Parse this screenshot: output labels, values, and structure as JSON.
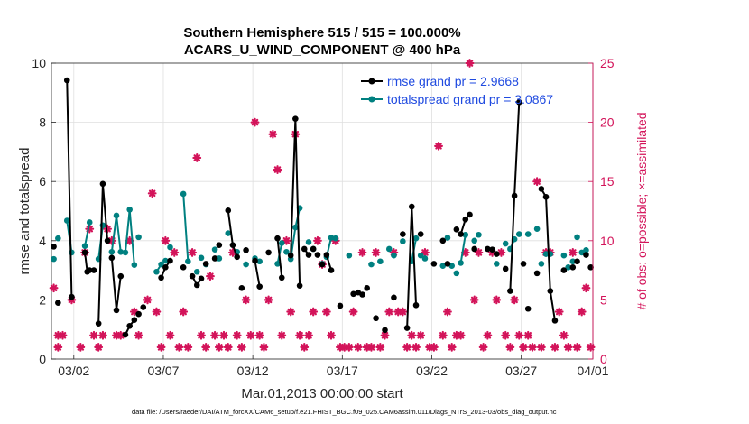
{
  "chart_data": {
    "type": "line",
    "title_line1": "Southern Hemisphere 515 / 515 = 100.000%",
    "title_line2": "ACARS_U_WIND_COMPONENT @ 400 hPa",
    "xlabel": "Mar.01,2013 00:00:00 start",
    "ylabel_left": "rmse and totalspread",
    "ylabel_right": "# of obs: o=possible; ×=assimilated",
    "xlim": [
      0.75,
      31.0
    ],
    "ylim_left": [
      0,
      10
    ],
    "ylim_right": [
      0,
      25
    ],
    "x_ticks": [
      {
        "value": 2,
        "label": "03/02"
      },
      {
        "value": 7,
        "label": "03/07"
      },
      {
        "value": 12,
        "label": "03/12"
      },
      {
        "value": 17,
        "label": "03/17"
      },
      {
        "value": 22,
        "label": "03/22"
      },
      {
        "value": 27,
        "label": "03/27"
      },
      {
        "value": 32,
        "label": "04/01"
      }
    ],
    "y_ticks_left": [
      "0",
      "2",
      "4",
      "6",
      "8",
      "10"
    ],
    "y_ticks_right": [
      "0",
      "5",
      "10",
      "15",
      "20",
      "25"
    ],
    "legend": [
      {
        "name": "rmse grand pr = 2.9668",
        "color": "#000000"
      },
      {
        "name": "totalspread grand pr = 3.0867",
        "color": "#008080"
      }
    ],
    "colors": {
      "rmse": "#000000",
      "totalspread": "#008080",
      "obs": "#d3145a",
      "legend_text": "#1f4ae0"
    },
    "footnote": "data file: /Users/raeder/DAI/ATM_forcXX/CAM6_setup/f.e21.FHIST_BGC.f09_025.CAM6assim.011/Diags_NTrS_2013-03/obs_diag_output.nc",
    "rmse_segments": [
      [
        [
          0.88,
          3.8
        ]
      ],
      [
        [
          1.12,
          1.9
        ]
      ],
      [
        [
          1.62,
          9.42
        ],
        [
          1.88,
          2.1
        ]
      ],
      [
        [
          2.62,
          3.6
        ],
        [
          2.75,
          2.95
        ],
        [
          2.88,
          3.0
        ],
        [
          3.12,
          3.0
        ]
      ],
      [
        [
          3.38,
          1.2
        ],
        [
          3.62,
          5.92
        ],
        [
          3.88,
          4.0
        ]
      ],
      [
        [
          4.12,
          3.42
        ],
        [
          4.38,
          1.65
        ],
        [
          4.62,
          2.8
        ]
      ],
      [
        [
          4.88,
          0.82
        ],
        [
          5.12,
          1.12
        ],
        [
          5.38,
          1.32
        ]
      ],
      [
        [
          5.62,
          1.52
        ]
      ],
      [
        [
          5.88,
          1.75
        ]
      ],
      [
        [
          6.88,
          2.75
        ],
        [
          7.12,
          3.1
        ],
        [
          7.38,
          3.32
        ]
      ],
      [
        [
          8.12,
          3.1
        ]
      ],
      [
        [
          8.62,
          2.8
        ],
        [
          8.88,
          2.5
        ],
        [
          9.12,
          2.72
        ]
      ],
      [
        [
          9.38,
          3.22
        ]
      ],
      [
        [
          9.88,
          3.4
        ]
      ],
      [
        [
          10.12,
          3.85
        ]
      ],
      [
        [
          10.62,
          5.02
        ],
        [
          10.88,
          3.85
        ],
        [
          11.12,
          3.45
        ]
      ],
      [
        [
          11.38,
          2.4
        ]
      ],
      [
        [
          11.62,
          3.68
        ]
      ],
      [
        [
          12.12,
          3.32
        ],
        [
          12.38,
          2.45
        ]
      ],
      [
        [
          12.88,
          3.6
        ]
      ],
      [
        [
          13.38,
          4.08
        ],
        [
          13.62,
          2.75
        ]
      ],
      [
        [
          14.12,
          3.5
        ],
        [
          14.38,
          8.12
        ],
        [
          14.62,
          2.48
        ]
      ],
      [
        [
          14.88,
          3.72
        ],
        [
          15.12,
          3.52
        ]
      ],
      [
        [
          15.38,
          3.72
        ]
      ],
      [
        [
          15.62,
          3.52
        ]
      ],
      [
        [
          15.88,
          3.2
        ]
      ],
      [
        [
          16.12,
          3.52
        ],
        [
          16.38,
          3.0
        ]
      ],
      [
        [
          16.88,
          1.8
        ]
      ],
      [
        [
          17.62,
          2.2
        ]
      ],
      [
        [
          17.88,
          2.25
        ]
      ],
      [
        [
          18.12,
          2.18
        ]
      ],
      [
        [
          18.38,
          2.4
        ]
      ],
      [
        [
          18.88,
          1.38
        ]
      ],
      [
        [
          19.38,
          0.98
        ]
      ],
      [
        [
          19.88,
          2.08
        ]
      ],
      [
        [
          20.38,
          4.22
        ]
      ],
      [
        [
          20.62,
          1.05
        ],
        [
          20.88,
          5.15
        ],
        [
          21.12,
          1.82
        ]
      ],
      [
        [
          21.38,
          4.22
        ]
      ],
      [
        [
          22.12,
          3.22
        ]
      ],
      [
        [
          22.62,
          4.0
        ]
      ],
      [
        [
          22.88,
          3.22
        ]
      ],
      [
        [
          23.38,
          4.38
        ]
      ],
      [
        [
          23.62,
          4.22
        ],
        [
          23.88,
          4.72
        ],
        [
          24.12,
          4.88
        ]
      ],
      [
        [
          24.38,
          3.72
        ]
      ],
      [
        [
          25.12,
          3.72
        ]
      ],
      [
        [
          25.38,
          3.7
        ]
      ],
      [
        [
          25.62,
          3.55
        ]
      ],
      [
        [
          26.12,
          3.05
        ]
      ],
      [
        [
          26.38,
          2.3
        ],
        [
          26.62,
          5.52
        ],
        [
          26.88,
          8.68
        ]
      ],
      [
        [
          27.12,
          3.22
        ]
      ],
      [
        [
          27.38,
          1.7
        ]
      ],
      [
        [
          27.88,
          2.9
        ]
      ],
      [
        [
          28.12,
          5.75
        ],
        [
          28.38,
          5.48
        ],
        [
          28.62,
          2.3
        ],
        [
          28.88,
          1.3
        ]
      ],
      [
        [
          29.38,
          3.0
        ]
      ],
      [
        [
          29.88,
          3.1
        ]
      ],
      [
        [
          30.12,
          3.3
        ]
      ],
      [
        [
          30.62,
          3.52
        ]
      ],
      [
        [
          30.88,
          3.1
        ]
      ]
    ],
    "totalspread_segments": [
      [
        [
          0.88,
          3.38
        ]
      ],
      [
        [
          1.12,
          4.08
        ]
      ],
      [
        [
          1.62,
          4.68
        ],
        [
          1.88,
          3.6
        ]
      ],
      [
        [
          2.62,
          3.82
        ],
        [
          2.88,
          4.62
        ]
      ],
      [
        [
          3.38,
          3.38
        ],
        [
          3.62,
          4.52
        ]
      ],
      [
        [
          4.12,
          3.62
        ],
        [
          4.38,
          4.85
        ],
        [
          4.62,
          3.62
        ]
      ],
      [
        [
          4.88,
          3.6
        ],
        [
          5.12,
          5.05
        ],
        [
          5.38,
          3.18
        ]
      ],
      [
        [
          5.62,
          4.12
        ]
      ],
      [
        [
          6.62,
          2.95
        ],
        [
          6.88,
          3.2
        ],
        [
          7.12,
          3.32
        ]
      ],
      [
        [
          7.38,
          3.78
        ]
      ],
      [
        [
          8.12,
          5.58
        ],
        [
          8.38,
          3.3
        ]
      ],
      [
        [
          8.88,
          2.95
        ]
      ],
      [
        [
          9.12,
          3.42
        ]
      ],
      [
        [
          9.38,
          3.2
        ]
      ],
      [
        [
          9.88,
          3.7
        ]
      ],
      [
        [
          10.12,
          3.4
        ]
      ],
      [
        [
          10.62,
          4.25
        ]
      ],
      [
        [
          11.12,
          3.62
        ]
      ],
      [
        [
          11.62,
          3.2
        ]
      ],
      [
        [
          12.12,
          3.4
        ]
      ],
      [
        [
          12.38,
          3.3
        ]
      ],
      [
        [
          13.38,
          3.22
        ],
        [
          13.62,
          3.92
        ]
      ],
      [
        [
          13.88,
          3.62
        ]
      ],
      [
        [
          14.12,
          3.38
        ],
        [
          14.38,
          4.45
        ],
        [
          14.62,
          5.1
        ]
      ],
      [
        [
          15.12,
          3.95
        ]
      ],
      [
        [
          15.38,
          3.72
        ]
      ],
      [
        [
          15.88,
          3.22
        ]
      ],
      [
        [
          16.12,
          3.45
        ],
        [
          16.38,
          4.1
        ]
      ],
      [
        [
          16.62,
          4.08
        ]
      ],
      [
        [
          17.38,
          3.5
        ]
      ],
      [
        [
          18.62,
          3.2
        ]
      ],
      [
        [
          19.12,
          3.3
        ]
      ],
      [
        [
          19.62,
          3.72
        ]
      ],
      [
        [
          19.88,
          3.5
        ]
      ],
      [
        [
          20.38,
          3.98
        ]
      ],
      [
        [
          20.88,
          3.3
        ],
        [
          21.12,
          4.08
        ]
      ],
      [
        [
          21.38,
          3.5
        ]
      ],
      [
        [
          21.62,
          3.4
        ]
      ],
      [
        [
          22.62,
          3.15
        ]
      ],
      [
        [
          22.88,
          4.1
        ]
      ],
      [
        [
          23.12,
          3.15
        ]
      ],
      [
        [
          23.38,
          2.9
        ]
      ],
      [
        [
          23.62,
          3.25
        ],
        [
          23.88,
          4.2
        ]
      ],
      [
        [
          24.38,
          4.0
        ]
      ],
      [
        [
          24.62,
          4.2
        ]
      ],
      [
        [
          25.62,
          3.22
        ]
      ],
      [
        [
          26.12,
          3.9
        ]
      ],
      [
        [
          26.38,
          3.72
        ],
        [
          26.62,
          4.05
        ]
      ],
      [
        [
          26.88,
          4.22
        ]
      ],
      [
        [
          27.38,
          4.22
        ]
      ],
      [
        [
          27.88,
          4.4
        ]
      ],
      [
        [
          28.12,
          3.22
        ]
      ],
      [
        [
          28.38,
          3.55
        ],
        [
          28.62,
          3.55
        ]
      ],
      [
        [
          29.38,
          3.5
        ]
      ],
      [
        [
          29.62,
          3.1
        ]
      ],
      [
        [
          29.88,
          3.3
        ]
      ],
      [
        [
          30.12,
          4.12
        ]
      ],
      [
        [
          30.38,
          3.6
        ]
      ],
      [
        [
          30.62,
          3.68
        ]
      ]
    ],
    "obs_points": [
      [
        0.88,
        6
      ],
      [
        1.12,
        1
      ],
      [
        1.12,
        2
      ],
      [
        1.38,
        2
      ],
      [
        1.88,
        5
      ],
      [
        2.38,
        1
      ],
      [
        2.62,
        9
      ],
      [
        2.88,
        11
      ],
      [
        3.12,
        2
      ],
      [
        3.38,
        1
      ],
      [
        3.62,
        2
      ],
      [
        3.88,
        11
      ],
      [
        4.12,
        10
      ],
      [
        4.38,
        2
      ],
      [
        4.62,
        2
      ],
      [
        5.12,
        10
      ],
      [
        5.38,
        4
      ],
      [
        5.62,
        2
      ],
      [
        6.12,
        5
      ],
      [
        6.38,
        14
      ],
      [
        6.62,
        4
      ],
      [
        6.88,
        1
      ],
      [
        7.12,
        10
      ],
      [
        7.38,
        2
      ],
      [
        7.62,
        9
      ],
      [
        7.88,
        1
      ],
      [
        8.12,
        4
      ],
      [
        8.38,
        1
      ],
      [
        8.62,
        9
      ],
      [
        8.88,
        17
      ],
      [
        9.12,
        2
      ],
      [
        9.38,
        1
      ],
      [
        9.62,
        7
      ],
      [
        9.88,
        2
      ],
      [
        10.12,
        1
      ],
      [
        10.38,
        2
      ],
      [
        10.62,
        1
      ],
      [
        10.88,
        9
      ],
      [
        11.12,
        2
      ],
      [
        11.38,
        1
      ],
      [
        11.62,
        5
      ],
      [
        11.88,
        2
      ],
      [
        12.12,
        20
      ],
      [
        12.38,
        2
      ],
      [
        12.62,
        1
      ],
      [
        12.88,
        5
      ],
      [
        13.12,
        19
      ],
      [
        13.38,
        16
      ],
      [
        13.62,
        2
      ],
      [
        13.88,
        10
      ],
      [
        14.12,
        4
      ],
      [
        14.38,
        19
      ],
      [
        14.62,
        2
      ],
      [
        14.88,
        1
      ],
      [
        15.12,
        2
      ],
      [
        15.38,
        4
      ],
      [
        15.62,
        10
      ],
      [
        15.88,
        8
      ],
      [
        16.12,
        4
      ],
      [
        16.38,
        2
      ],
      [
        16.62,
        10
      ],
      [
        16.88,
        1
      ],
      [
        17.12,
        1
      ],
      [
        17.38,
        1
      ],
      [
        17.62,
        4
      ],
      [
        17.88,
        1
      ],
      [
        18.12,
        9
      ],
      [
        18.38,
        1
      ],
      [
        18.62,
        1
      ],
      [
        18.88,
        9
      ],
      [
        19.12,
        1
      ],
      [
        19.38,
        2
      ],
      [
        19.62,
        4
      ],
      [
        19.88,
        9
      ],
      [
        20.12,
        4
      ],
      [
        20.38,
        4
      ],
      [
        20.62,
        1
      ],
      [
        20.88,
        2
      ],
      [
        21.12,
        1
      ],
      [
        21.38,
        2
      ],
      [
        21.62,
        9
      ],
      [
        21.88,
        1
      ],
      [
        22.12,
        1
      ],
      [
        22.38,
        18
      ],
      [
        22.62,
        2
      ],
      [
        22.88,
        4
      ],
      [
        23.12,
        1
      ],
      [
        23.38,
        2
      ],
      [
        23.62,
        2
      ],
      [
        23.88,
        9
      ],
      [
        24.12,
        25
      ],
      [
        24.38,
        5
      ],
      [
        24.62,
        9
      ],
      [
        24.88,
        1
      ],
      [
        25.12,
        2
      ],
      [
        25.38,
        9
      ],
      [
        25.62,
        5
      ],
      [
        25.88,
        9
      ],
      [
        26.12,
        2
      ],
      [
        26.38,
        1
      ],
      [
        26.62,
        5
      ],
      [
        26.88,
        2
      ],
      [
        27.12,
        1
      ],
      [
        27.38,
        2
      ],
      [
        27.62,
        1
      ],
      [
        27.88,
        15
      ],
      [
        28.12,
        1
      ],
      [
        28.38,
        9
      ],
      [
        28.62,
        9
      ],
      [
        28.88,
        1
      ],
      [
        29.12,
        4
      ],
      [
        29.38,
        2
      ],
      [
        29.62,
        1
      ],
      [
        29.88,
        9
      ],
      [
        30.12,
        1
      ],
      [
        30.38,
        4
      ],
      [
        30.62,
        6
      ],
      [
        30.88,
        1
      ]
    ]
  }
}
